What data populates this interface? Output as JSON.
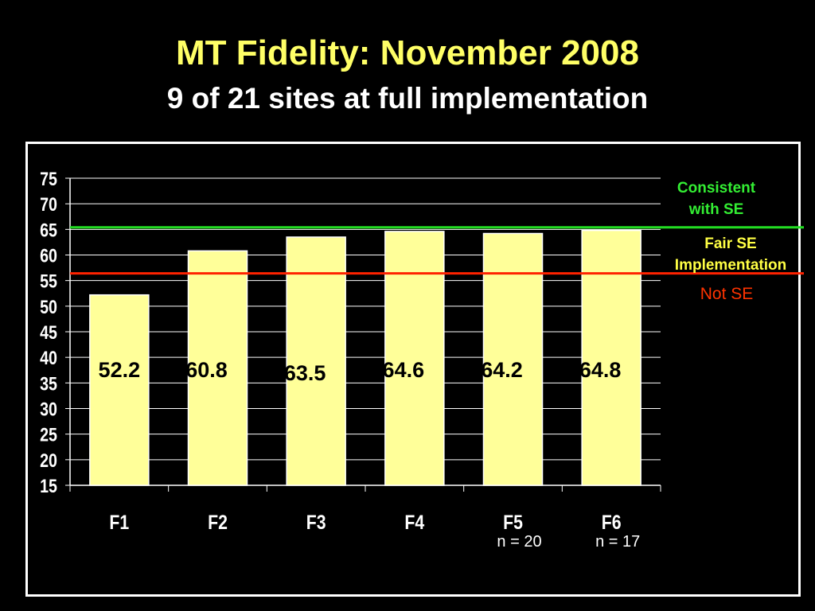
{
  "title": "MT Fidelity:  November 2008",
  "subtitle": "9 of 21 sites at full implementation",
  "colors": {
    "background": "#000000",
    "title": "#ffff66",
    "bar_fill": "#ffff99",
    "consistent_line": "#22dd22",
    "not_se_line": "#ff2200",
    "consistent_text": "#33ee33",
    "fair_text": "#ffff44",
    "not_se_text": "#ff3300"
  },
  "chart_data": {
    "type": "bar",
    "categories": [
      "F1",
      "F2",
      "F3",
      "F4",
      "F5",
      "F6"
    ],
    "values": [
      52.2,
      60.8,
      63.5,
      64.6,
      64.2,
      64.8
    ],
    "value_labels": [
      "52.2",
      "60.8",
      "63.5",
      "64.6",
      "64.2",
      "64.8"
    ],
    "ylim": [
      15,
      75
    ],
    "yticks": [
      "75",
      "70",
      "65",
      "60",
      "55",
      "50",
      "45",
      "40",
      "35",
      "30",
      "25",
      "20",
      "15"
    ],
    "ytick_values": [
      75,
      70,
      65,
      60,
      55,
      50,
      45,
      40,
      35,
      30,
      25,
      20,
      15
    ],
    "grid": true,
    "n_labels": [
      "",
      "",
      "",
      "",
      "n = 20",
      "n = 17"
    ],
    "thresholds": [
      {
        "name": "consistent",
        "value": 65.4
      },
      {
        "name": "not-se",
        "value": 56.4
      }
    ],
    "annotations": {
      "consistent": [
        "Consistent",
        "with SE"
      ],
      "fair": [
        "Fair SE",
        "Implementation"
      ],
      "not_se": "Not SE"
    }
  }
}
